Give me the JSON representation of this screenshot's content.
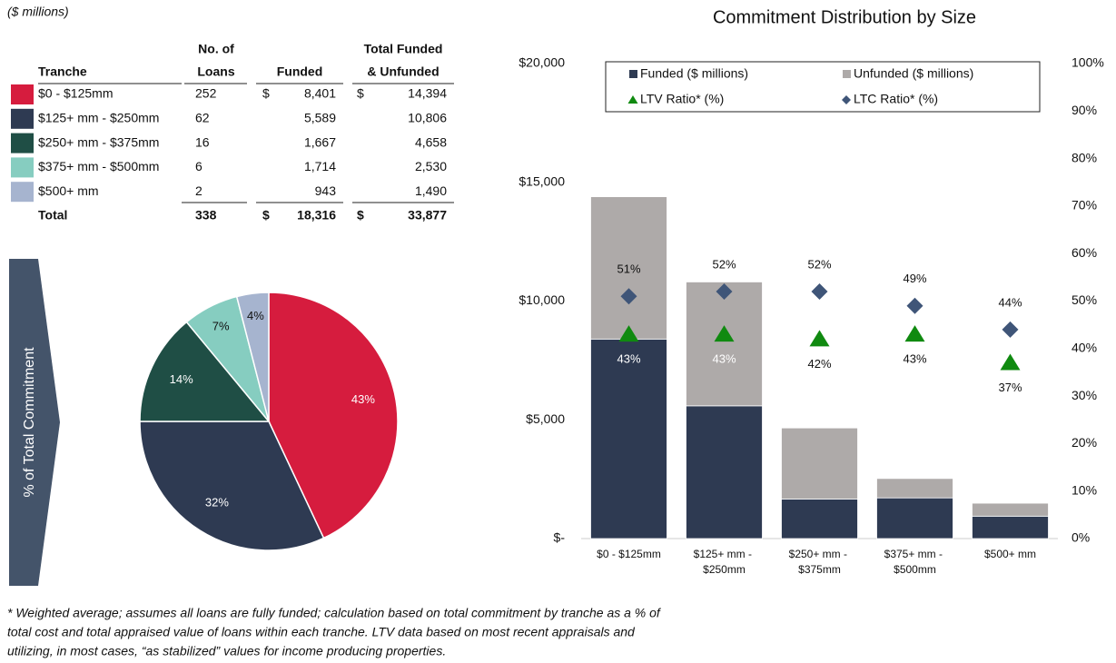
{
  "table": {
    "caption": "($ millions)",
    "headers": [
      [
        "Tranche"
      ],
      [
        "No. of",
        "Loans"
      ],
      [
        "Funded"
      ],
      [
        "Total Funded",
        "& Unfunded"
      ]
    ],
    "rows": [
      {
        "label": "$0 - $125mm",
        "loans": "252",
        "funded_symbol": "$",
        "funded": "8,401",
        "total_symbol": "$",
        "total": "14,394"
      },
      {
        "label": "$125+ mm - $250mm",
        "loans": "62",
        "funded": "5,589",
        "total": "10,806"
      },
      {
        "label": "$250+ mm - $375mm",
        "loans": "16",
        "funded": "1,667",
        "total": "4,658"
      },
      {
        "label": "$375+ mm - $500mm",
        "loans": "6",
        "funded": "1,714",
        "total": "2,530"
      },
      {
        "label": "$500+ mm",
        "loans": "2",
        "funded": "943",
        "total": "1,490"
      }
    ],
    "total_row": {
      "label": "Total",
      "loans": "338",
      "funded_symbol": "$",
      "funded": "18,316",
      "total_symbol": "$",
      "total": "33,877"
    }
  },
  "chart_data": [
    {
      "type": "pie",
      "side_label": "% of Total Commitment",
      "values": [
        43,
        32,
        14,
        7,
        4
      ],
      "value_labels": [
        "43%",
        "32%",
        "14%",
        "7%",
        "4%"
      ],
      "colors": [
        "#d61c3e",
        "#2e3a52",
        "#1f4e45",
        "#86cdc0",
        "#a6b4cf"
      ]
    },
    {
      "type": "combo",
      "title": "Commitment Distribution by Size",
      "categories": [
        "$0 - $125mm",
        "$125+ mm - $250mm",
        "$250+ mm - $375mm",
        "$375+ mm - $500mm",
        "$500+ mm"
      ],
      "series": [
        {
          "name": "Funded ($ millions)",
          "kind": "bar",
          "color": "#2e3a52",
          "values": [
            8401,
            5589,
            1667,
            1714,
            943
          ]
        },
        {
          "name": "Unfunded ($ millions)",
          "kind": "bar",
          "color": "#aeaaa9",
          "values": [
            5993,
            5217,
            2991,
            816,
            547
          ]
        },
        {
          "name": "LTV Ratio* (%)",
          "kind": "triangle",
          "axis": "y2",
          "color": "#108a10",
          "values": [
            43,
            43,
            42,
            43,
            37
          ],
          "value_labels": [
            "43%",
            "43%",
            "42%",
            "43%",
            "37%"
          ]
        },
        {
          "name": "LTC Ratio* (%)",
          "kind": "diamond",
          "axis": "y2",
          "color": "#3f5578",
          "values": [
            51,
            52,
            52,
            49,
            44
          ],
          "value_labels": [
            "51%",
            "52%",
            "52%",
            "49%",
            "44%"
          ]
        }
      ],
      "ylim": [
        0,
        20000
      ],
      "yticks": [
        {
          "value": 0,
          "label": "$-"
        },
        {
          "value": 5000,
          "label": "$5,000"
        },
        {
          "value": 10000,
          "label": "$10,000"
        },
        {
          "value": 15000,
          "label": "$15,000"
        },
        {
          "value": 20000,
          "label": "$20,000"
        }
      ],
      "y2lim": [
        0,
        100
      ],
      "y2ticks": [
        {
          "value": 0,
          "label": "0%"
        },
        {
          "value": 10,
          "label": "10%"
        },
        {
          "value": 20,
          "label": "20%"
        },
        {
          "value": 30,
          "label": "30%"
        },
        {
          "value": 40,
          "label": "40%"
        },
        {
          "value": 50,
          "label": "50%"
        },
        {
          "value": 60,
          "label": "60%"
        },
        {
          "value": 70,
          "label": "70%"
        },
        {
          "value": 80,
          "label": "80%"
        },
        {
          "value": 90,
          "label": "90%"
        },
        {
          "value": 100,
          "label": "100%"
        }
      ],
      "legend": "top"
    }
  ],
  "footnote": [
    "* Weighted average; assumes all loans are fully funded; calculation based on total commitment by tranche as a % of",
    "total cost and total appraised value of loans within each tranche. LTV data based on most recent appraisals and",
    "utilizing, in most cases, “as stabilized” values for income producing properties."
  ]
}
